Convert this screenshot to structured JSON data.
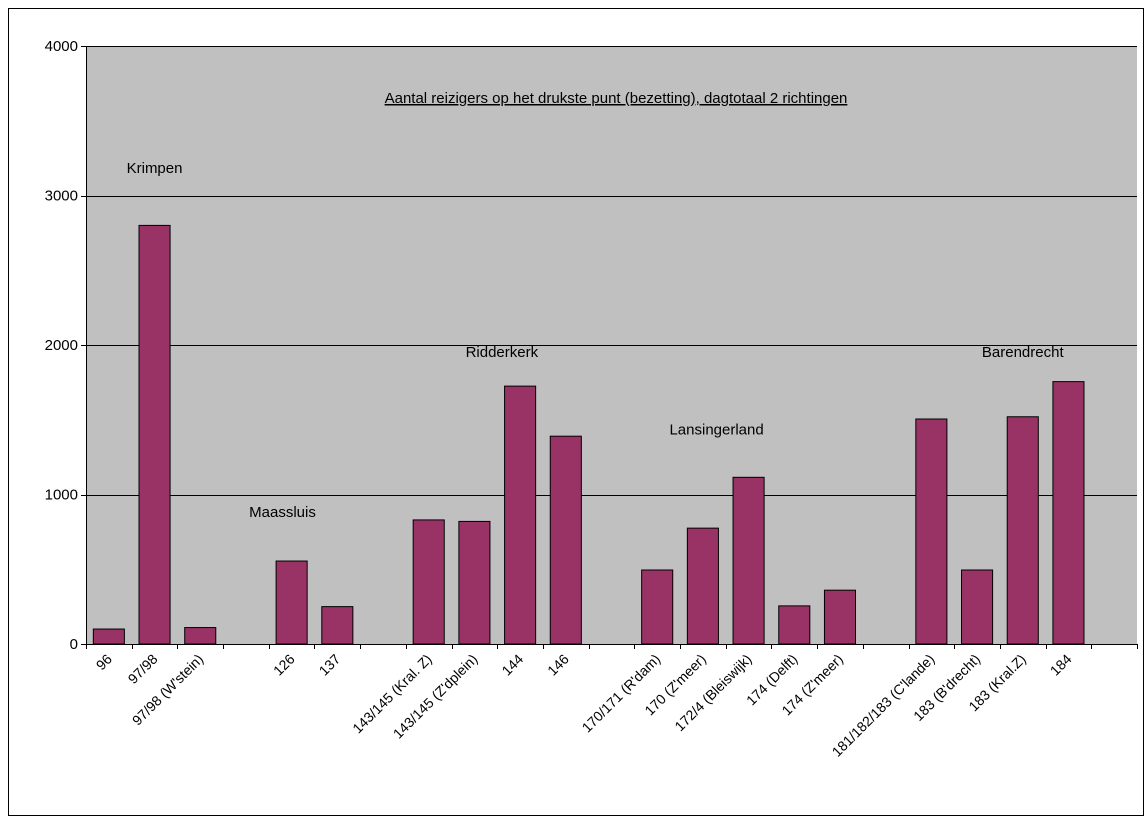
{
  "chart_data": {
    "type": "bar",
    "title": "Aantal reizigers op het drukste punt (bezetting), dagtotaal 2 richtingen",
    "xlabel": "",
    "ylabel": "",
    "ylim": [
      0,
      4000
    ],
    "yticks": [
      0,
      1000,
      2000,
      3000,
      4000
    ],
    "grid": true,
    "slot_count": 23,
    "categories": [
      "96",
      "97/98",
      "97/98 (W'stein)",
      "126",
      "137",
      "143/145 (Kral. Z)",
      "143/145 (Z'dplein)",
      "144",
      "146",
      "170/171 (R'dam)",
      "170 (Z'meer)",
      "172/4 (Bleiswijk)",
      "174 (Delft)",
      "174 (Z'meer)",
      "181/182/183 (C'lande)",
      "183 (B'drecht)",
      "183 (Kral.Z)",
      "184"
    ],
    "slots": [
      0,
      1,
      2,
      4,
      5,
      7,
      8,
      9,
      10,
      12,
      13,
      14,
      15,
      16,
      18,
      19,
      20,
      21
    ],
    "values": [
      100,
      2800,
      110,
      555,
      250,
      830,
      820,
      1725,
      1390,
      495,
      775,
      1115,
      255,
      360,
      1505,
      495,
      1520,
      1755
    ],
    "annotations": [
      {
        "text": "Krimpen",
        "x_slot": 1.5,
        "y": 3150
      },
      {
        "text": "Maassluis",
        "x_slot": 4.3,
        "y": 850
      },
      {
        "text": "Ridderkerk",
        "x_slot": 9.1,
        "y": 1920
      },
      {
        "text": "Lansingerland",
        "x_slot": 13.8,
        "y": 1400
      },
      {
        "text": "Barendrecht",
        "x_slot": 20.5,
        "y": 1920
      }
    ],
    "colors": {
      "plot_background": "#c0c0c0",
      "bar_fill": "#993366",
      "bar_stroke": "#000000",
      "grid": "#000000"
    }
  }
}
